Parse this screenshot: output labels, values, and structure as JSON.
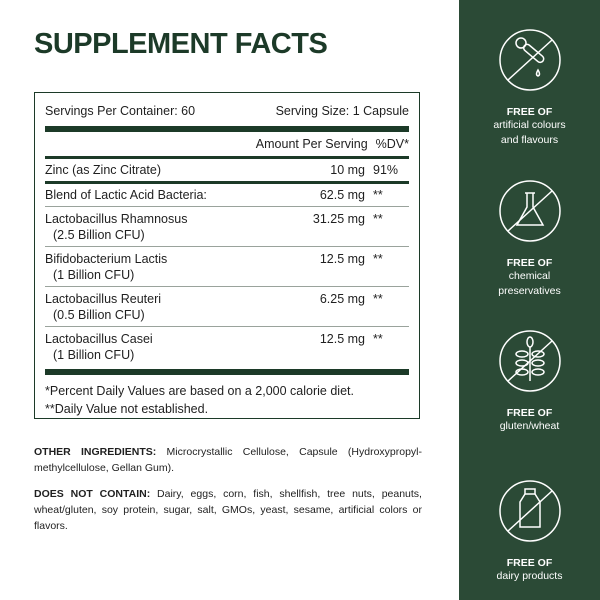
{
  "title": "SUPPLEMENT FACTS",
  "facts": {
    "servings_per_container": "Servings Per Container: 60",
    "serving_size": "Serving Size: 1 Capsule",
    "amount_header": "Amount Per Serving",
    "dv_header": "%DV*",
    "rows": [
      {
        "name": "Zinc (as Zinc Citrate)",
        "sub": "",
        "amount": "10 mg",
        "dv": "91%"
      },
      {
        "name": "Blend of Lactic Acid Bacteria:",
        "sub": "",
        "amount": "62.5 mg",
        "dv": "**"
      },
      {
        "name": "Lactobacillus Rhamnosus",
        "sub": "(2.5 Billion CFU)",
        "amount": "31.25 mg",
        "dv": "**"
      },
      {
        "name": "Bifidobacterium Lactis",
        "sub": "(1 Billion CFU)",
        "amount": "12.5 mg",
        "dv": "**"
      },
      {
        "name": "Lactobacillus Reuteri",
        "sub": "(0.5 Billion CFU)",
        "amount": "6.25 mg",
        "dv": "**"
      },
      {
        "name": "Lactobacillus Casei",
        "sub": "(1 Billion CFU)",
        "amount": "12.5 mg",
        "dv": "**"
      }
    ],
    "footnote1": "*Percent Daily Values are based on a 2,000 calorie diet.",
    "footnote2": "**Daily Value not established."
  },
  "other_ingredients": {
    "label": "OTHER INGREDIENTS:",
    "text": " Microcrystallic Cellulose, Capsule (Hydroxypropyl-methylcellulose, Gellan Gum)."
  },
  "does_not_contain": {
    "label": "DOES NOT CONTAIN:",
    "text": " Dairy, eggs, corn, fish, shellfish, tree nuts, peanuts, wheat/gluten, soy protein, sugar, salt, GMOs, yeast, sesame, artificial colors or flavors."
  },
  "sidebar": {
    "bg": "#2b4a36",
    "features": [
      {
        "icon": "dropper-icon",
        "heading": "FREE OF",
        "line1": "artificial colours",
        "line2": "and flavours"
      },
      {
        "icon": "flask-icon",
        "heading": "FREE OF",
        "line1": "chemical",
        "line2": "preservatives"
      },
      {
        "icon": "wheat-icon",
        "heading": "FREE OF",
        "line1": "gluten/wheat",
        "line2": ""
      },
      {
        "icon": "milk-bottle-icon",
        "heading": "FREE OF",
        "line1": "dairy products",
        "line2": ""
      }
    ]
  }
}
